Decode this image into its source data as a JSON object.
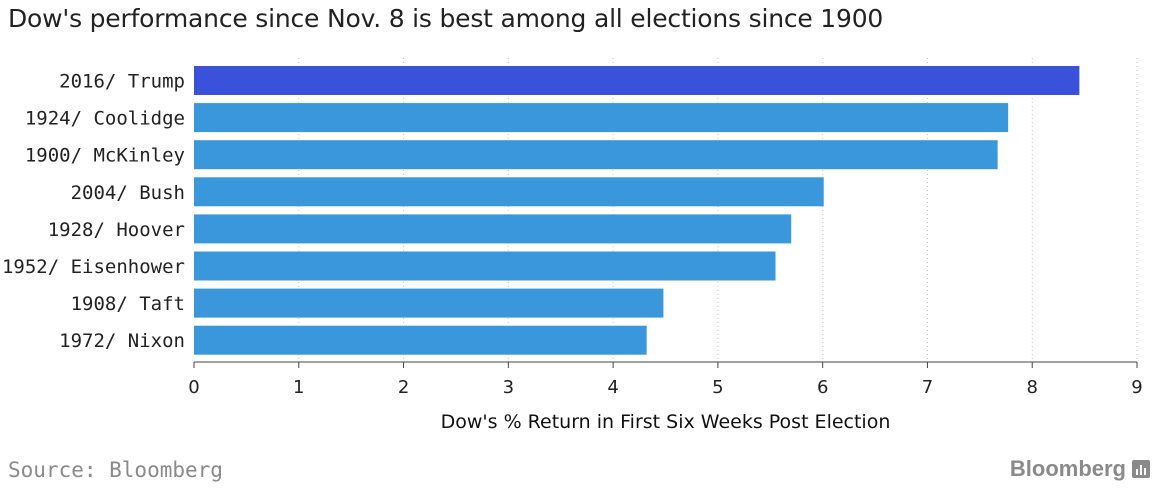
{
  "title": "Dow's performance since Nov. 8 is best among all elections since 1900",
  "source": "Source: Bloomberg",
  "brand": "Bloomberg",
  "brand_icon": "bloomberg-chart-icon",
  "chart_data": {
    "type": "bar",
    "orientation": "horizontal",
    "categories": [
      "2016/ Trump",
      "1924/ Coolidge",
      "1900/ McKinley",
      "2004/ Bush",
      "1928/ Hoover",
      "1952/ Eisenhower",
      "1908/ Taft",
      "1972/ Nixon"
    ],
    "values": [
      8.45,
      7.77,
      7.67,
      6.01,
      5.7,
      5.55,
      4.48,
      4.32
    ],
    "highlight_index": 0,
    "colors": {
      "highlight": "#3a52db",
      "bar": "#3a97dc"
    },
    "xlabel": "Dow's % Return in First Six Weeks Post Election",
    "ylabel": "",
    "xlim": [
      0,
      9
    ],
    "xticks": [
      "0",
      "1",
      "2",
      "3",
      "4",
      "5",
      "6",
      "7",
      "8",
      "9"
    ],
    "grid": "vertical dotted"
  }
}
